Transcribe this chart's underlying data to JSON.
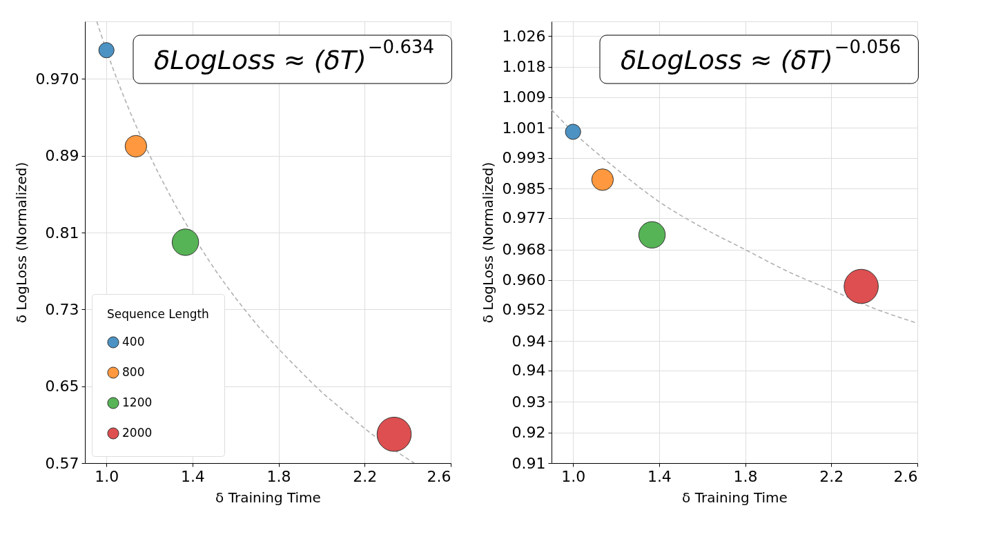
{
  "chart_data": [
    {
      "type": "bubble",
      "xlabel": "δ Training Time",
      "ylabel": "δ LogLoss (Normalized)",
      "xlim": [
        0.9,
        2.6
      ],
      "xticks": [
        {
          "value": 1.0,
          "label": "1.0"
        },
        1.4,
        1.8,
        2.2,
        2.6
      ],
      "ylim": [
        0.57,
        1.03
      ],
      "yticks": [
        0.57,
        0.65,
        0.73,
        0.81,
        0.89,
        {
          "value": 0.97,
          "label": "0.970"
        }
      ],
      "grid": true,
      "legend": "bottom left",
      "legend_title": "Sequence Length",
      "annotations": [
        "δLogLoss ≈ (δT)$^{−0.634}$"
      ],
      "series": [
        {
          "name": "400",
          "color": "#4c92c3",
          "x": [
            1.0
          ],
          "values": [
            1.0
          ],
          "sizes": [
            0.2
          ]
        },
        {
          "name": "800",
          "color": "#ff983e",
          "x": [
            1.137
          ],
          "values": [
            0.9
          ],
          "sizes": [
            0.4
          ]
        },
        {
          "name": "1200",
          "color": "#56b356",
          "x": [
            1.367
          ],
          "values": [
            0.8
          ],
          "sizes": [
            0.6
          ]
        },
        {
          "name": "2000",
          "color": "#dd4f50",
          "x": [
            2.337
          ],
          "values": [
            0.6
          ],
          "sizes": [
            1.0
          ]
        },
        {
          "type": "line",
          "color": "#b0b0b0",
          "line_style": "dashed",
          "marker": "none",
          "x": [
            0.955,
            1.0,
            1.1,
            1.2,
            1.3,
            1.4,
            1.5,
            1.6,
            1.7,
            1.8,
            1.9,
            2.0,
            2.1,
            2.2,
            2.43
          ],
          "values": [
            1.03,
            1.0,
            0.941,
            0.891,
            0.847,
            0.808,
            0.773,
            0.742,
            0.714,
            0.689,
            0.666,
            0.644,
            0.625,
            0.606,
            0.57
          ]
        }
      ]
    },
    {
      "type": "bubble",
      "xlabel": "δ Training Time",
      "ylabel": "δ LogLoss (Normalized)",
      "xlim": [
        0.9,
        2.6
      ],
      "xticks": [
        {
          "value": 1.0,
          "label": "1.0"
        },
        1.4,
        1.8,
        2.2,
        2.6
      ],
      "ylim": [
        0.91,
        1.03
      ],
      "yticks": [
        {
          "value": 0.91,
          "label": "0.91"
        },
        {
          "value": 0.9183,
          "label": "0.92"
        },
        {
          "value": 0.9266,
          "label": "0.93"
        },
        {
          "value": 0.9352,
          "label": "0.94"
        },
        {
          "value": 0.9431,
          "label": "0.94"
        },
        {
          "value": 0.9517,
          "label": "0.952"
        },
        {
          "value": 0.9597,
          "label": "0.960"
        },
        {
          "value": 0.968,
          "label": "0.968"
        },
        {
          "value": 0.9766,
          "label": "0.977"
        },
        {
          "value": 0.9846,
          "label": "0.985"
        },
        {
          "value": 0.9929,
          "label": "0.993"
        },
        {
          "value": 1.0011,
          "label": "1.001"
        },
        {
          "value": 1.0094,
          "label": "1.009"
        },
        {
          "value": 1.0177,
          "label": "1.018"
        },
        {
          "value": 1.026,
          "label": "1.026"
        }
      ],
      "grid": true,
      "annotations": [
        "δLogLoss ≈ (δT)$^{−0.056}$"
      ],
      "series": [
        {
          "color": "#4c92c3",
          "x": [
            1.0
          ],
          "values": [
            1.0
          ],
          "sizes": [
            0.2
          ]
        },
        {
          "color": "#ff983e",
          "x": [
            1.137
          ],
          "values": [
            0.987
          ],
          "sizes": [
            0.4
          ]
        },
        {
          "color": "#56b356",
          "x": [
            1.367
          ],
          "values": [
            0.972
          ],
          "sizes": [
            0.6
          ]
        },
        {
          "color": "#dd4f50",
          "x": [
            2.339
          ],
          "values": [
            0.958
          ],
          "sizes": [
            1.0
          ]
        },
        {
          "type": "line",
          "color": "#b0b0b0",
          "line_style": "dashed",
          "marker": "none",
          "x": [
            0.9,
            1.0,
            1.2,
            1.4,
            1.6,
            1.8,
            2.0,
            2.2,
            2.4,
            2.6
          ],
          "values": [
            1.006,
            1.0,
            0.99,
            0.981,
            0.974,
            0.968,
            0.962,
            0.957,
            0.952,
            0.948
          ]
        }
      ]
    }
  ]
}
